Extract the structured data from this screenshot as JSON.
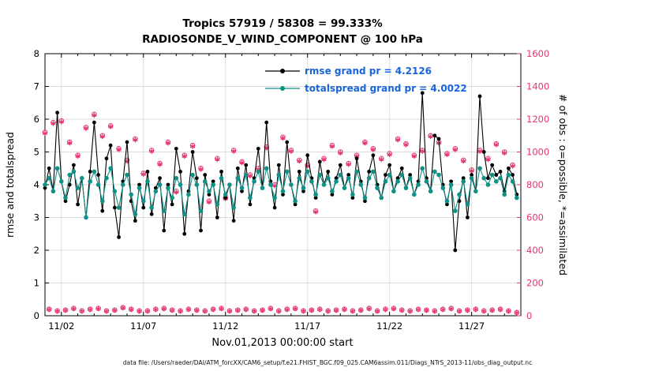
{
  "chart_data": {
    "type": "line",
    "title_line1": "Tropics  57919 / 58308 = 99.333%",
    "title_line2": "RADIOSONDE_V_WIND_COMPONENT @ 100 hPa",
    "xlabel": "Nov.01,2013 00:00:00 start",
    "ylabel_left": "rmse and totalspread",
    "ylabel_right": "# of obs : o=possible, *=assimilated",
    "ylim_left": [
      0,
      8
    ],
    "yticks_left": [
      0,
      1,
      2,
      3,
      4,
      5,
      6,
      7,
      8
    ],
    "ylim_right": [
      0,
      1600
    ],
    "yticks_right": [
      0,
      200,
      400,
      600,
      800,
      1000,
      1200,
      1400,
      1600
    ],
    "xticks": [
      {
        "day": 1,
        "label": "11/02"
      },
      {
        "day": 6,
        "label": "11/07"
      },
      {
        "day": 11,
        "label": "11/12"
      },
      {
        "day": 16,
        "label": "11/17"
      },
      {
        "day": 21,
        "label": "11/22"
      },
      {
        "day": 26,
        "label": "11/27"
      }
    ],
    "days_total": 29,
    "dt_days": 0.25,
    "grid": true,
    "legend_position": "top-center-inside",
    "legend_text_color": "#1a64db",
    "legend": [
      {
        "label": "rmse grand pr = 4.2126",
        "color": "#000000"
      },
      {
        "label": "totalspread grand pr = 4.0022",
        "color": "#0f9188"
      }
    ],
    "colors": {
      "rmse": "#000000",
      "totalspread": "#0f9188",
      "obs": "#e5366f",
      "grid": "#dedede",
      "box": "#000000"
    },
    "series": [
      {
        "name": "rmse",
        "values": [
          3.9,
          4.5,
          3.8,
          6.2,
          4.1,
          3.5,
          4.0,
          4.6,
          3.4,
          4.2,
          3.0,
          4.4,
          5.9,
          4.3,
          3.2,
          4.8,
          5.2,
          3.3,
          2.4,
          4.1,
          5.3,
          3.5,
          2.9,
          4.0,
          3.3,
          4.4,
          3.1,
          3.9,
          4.2,
          2.6,
          4.0,
          3.4,
          5.1,
          4.4,
          2.5,
          3.8,
          5.0,
          4.2,
          2.6,
          4.3,
          3.7,
          4.1,
          3.0,
          4.4,
          3.6,
          4.0,
          2.9,
          4.5,
          3.8,
          4.6,
          3.4,
          4.2,
          5.1,
          3.9,
          5.9,
          4.1,
          3.3,
          4.6,
          3.7,
          5.3,
          4.0,
          3.4,
          4.4,
          3.8,
          4.9,
          4.2,
          3.6,
          4.7,
          4.0,
          4.4,
          3.7,
          4.2,
          4.6,
          3.9,
          4.3,
          3.6,
          4.8,
          4.1,
          3.5,
          4.4,
          4.9,
          4.0,
          3.6,
          4.3,
          4.6,
          3.8,
          4.2,
          4.5,
          3.9,
          4.3,
          3.7,
          4.1,
          6.8,
          4.2,
          3.8,
          5.5,
          5.4,
          4.0,
          3.4,
          4.1,
          2.0,
          3.5,
          4.2,
          3.0,
          4.3,
          3.8,
          6.7,
          5.0,
          4.2,
          4.6,
          4.3,
          4.4,
          3.8,
          4.5,
          4.3,
          3.7
        ]
      },
      {
        "name": "totalspread",
        "values": [
          4.0,
          4.2,
          3.8,
          4.5,
          4.1,
          3.6,
          4.3,
          4.4,
          3.9,
          4.2,
          3.0,
          4.1,
          4.4,
          4.0,
          3.5,
          4.2,
          4.5,
          3.8,
          3.3,
          4.0,
          4.3,
          3.7,
          3.1,
          3.9,
          3.5,
          4.1,
          3.3,
          3.8,
          4.0,
          3.2,
          3.9,
          3.6,
          4.2,
          4.0,
          3.1,
          3.7,
          4.3,
          4.0,
          3.2,
          4.1,
          3.8,
          4.0,
          3.4,
          4.2,
          3.7,
          4.0,
          3.3,
          4.2,
          3.9,
          4.3,
          3.6,
          4.1,
          4.4,
          3.9,
          4.5,
          4.0,
          3.6,
          4.3,
          3.8,
          4.4,
          4.0,
          3.5,
          4.2,
          3.9,
          4.4,
          4.1,
          3.7,
          4.3,
          4.0,
          4.2,
          3.8,
          4.1,
          4.3,
          3.9,
          4.2,
          3.7,
          4.4,
          4.0,
          3.6,
          4.2,
          4.4,
          3.9,
          3.6,
          4.1,
          4.3,
          3.8,
          4.1,
          4.3,
          3.9,
          4.2,
          3.7,
          4.0,
          4.5,
          4.1,
          3.8,
          4.4,
          4.3,
          3.9,
          3.5,
          4.0,
          3.2,
          3.7,
          4.1,
          3.4,
          4.2,
          3.8,
          4.5,
          4.2,
          4.0,
          4.3,
          4.1,
          4.2,
          3.7,
          4.3,
          4.1,
          3.6
        ]
      }
    ],
    "obs": {
      "possible": [
        1120,
        40,
        1180,
        30,
        1190,
        35,
        1060,
        45,
        980,
        30,
        1150,
        40,
        1230,
        45,
        1100,
        30,
        1160,
        35,
        1020,
        50,
        950,
        40,
        1080,
        30,
        870,
        30,
        1010,
        40,
        930,
        45,
        1060,
        35,
        760,
        30,
        980,
        40,
        1040,
        35,
        900,
        30,
        700,
        40,
        960,
        45,
        720,
        30,
        1010,
        35,
        940,
        40,
        860,
        30,
        900,
        35,
        1030,
        45,
        800,
        30,
        1090,
        40,
        1010,
        45,
        950,
        30,
        920,
        35,
        640,
        40,
        960,
        30,
        1040,
        35,
        1000,
        40,
        930,
        30,
        980,
        35,
        1060,
        45,
        1020,
        30,
        960,
        40,
        990,
        45,
        1080,
        35,
        1050,
        30,
        980,
        40,
        1010,
        35,
        1100,
        30,
        1060,
        40,
        990,
        45,
        1020,
        30,
        950,
        35,
        890,
        40,
        1010,
        30,
        960,
        35,
        1050,
        40,
        1000,
        30,
        920,
        20
      ],
      "assimilated": [
        1114,
        38,
        1174,
        28,
        1184,
        33,
        1054,
        43,
        974,
        28,
        1144,
        38,
        1224,
        43,
        1094,
        28,
        1154,
        33,
        1014,
        48,
        944,
        38,
        1074,
        28,
        864,
        28,
        1004,
        38,
        924,
        43,
        1054,
        33,
        754,
        28,
        974,
        38,
        1034,
        33,
        894,
        28,
        694,
        38,
        954,
        43,
        714,
        28,
        1004,
        33,
        934,
        38,
        854,
        28,
        894,
        33,
        1024,
        43,
        794,
        28,
        1084,
        38,
        1004,
        43,
        944,
        28,
        914,
        33,
        634,
        38,
        954,
        28,
        1034,
        33,
        994,
        38,
        924,
        28,
        974,
        33,
        1054,
        43,
        1014,
        28,
        954,
        38,
        984,
        43,
        1074,
        33,
        1044,
        28,
        974,
        38,
        1004,
        33,
        1094,
        28,
        1054,
        38,
        984,
        43,
        1014,
        28,
        944,
        33,
        884,
        38,
        1004,
        28,
        954,
        33,
        1044,
        38,
        994,
        28,
        914,
        18
      ]
    }
  },
  "footer": {
    "datafile": "data file: /Users/raeder/DAI/ATM_forcXX/CAM6_setup/f.e21.FHIST_BGC.f09_025.CAM6assim.011/Diags_NTrS_2013-11/obs_diag_output.nc"
  }
}
